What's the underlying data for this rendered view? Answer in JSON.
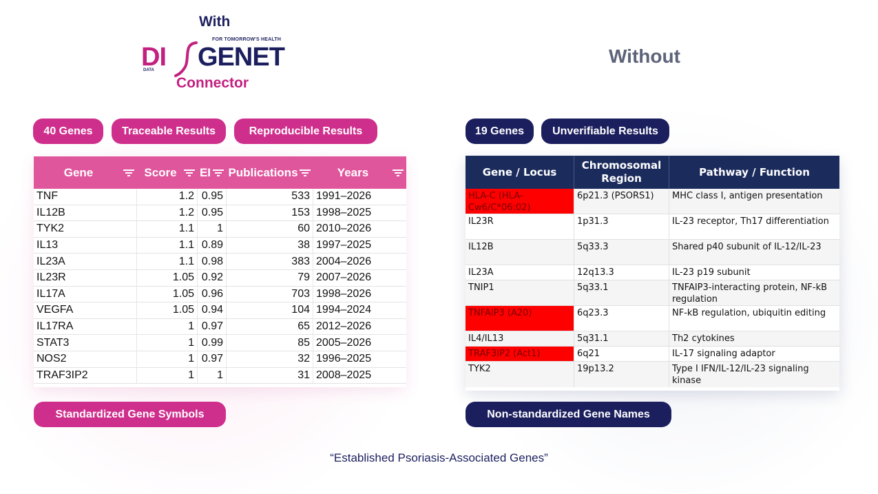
{
  "header": {
    "with_label": "With",
    "logo": {
      "tagline": "FOR TOMORROW'S HEALTH",
      "left": "DI",
      "right": "GENET",
      "sub": "DATA"
    },
    "connector_label": "Connector",
    "without_label": "Without"
  },
  "colors": {
    "pink": "#cf2f8c",
    "navy": "#1b1f5e",
    "table_pink": "#e0569d",
    "table_navy": "#1b2b5c",
    "highlight_red": "#ff0000"
  },
  "left": {
    "pills": [
      "40 Genes",
      "Traceable Results",
      "Reproducible Results"
    ],
    "footer_pill": "Standardized Gene Symbols",
    "table": {
      "columns": [
        "Gene",
        "Score",
        "EI",
        "Publications",
        "Years"
      ],
      "rows": [
        [
          "TNF",
          "1.2",
          "0.95",
          "533",
          "1991–2026"
        ],
        [
          "IL12B",
          "1.2",
          "0.95",
          "153",
          "1998–2025"
        ],
        [
          "TYK2",
          "1.1",
          "1",
          "60",
          "2010–2026"
        ],
        [
          "IL13",
          "1.1",
          "0.89",
          "38",
          "1997–2025"
        ],
        [
          "IL23A",
          "1.1",
          "0.98",
          "383",
          "2004–2026"
        ],
        [
          "IL23R",
          "1.05",
          "0.92",
          "79",
          "2007–2026"
        ],
        [
          "IL17A",
          "1.05",
          "0.96",
          "703",
          "1998–2026"
        ],
        [
          "VEGFA",
          "1.05",
          "0.94",
          "104",
          "1994–2024"
        ],
        [
          "IL17RA",
          "1",
          "0.97",
          "65",
          "2012–2026"
        ],
        [
          "STAT3",
          "1",
          "0.99",
          "85",
          "2005–2026"
        ],
        [
          "NOS2",
          "1",
          "0.97",
          "32",
          "1996–2025"
        ],
        [
          "TRAF3IP2",
          "1",
          "1",
          "31",
          "2008–2025"
        ]
      ]
    }
  },
  "right": {
    "pills": [
      "19 Genes",
      "Unverifiable Results"
    ],
    "footer_pill": "Non-standardized Gene Names",
    "table": {
      "columns": [
        "Gene / Locus",
        "Chromosomal Region",
        "Pathway / Function"
      ],
      "rows": [
        {
          "gene": "HLA-C (HLA-Cw6/C*06:02)",
          "region": "6p21.3 (PSORS1)",
          "function": "MHC class I, antigen presentation",
          "highlight": true
        },
        {
          "gene": "IL23R",
          "region": "1p31.3",
          "function": "IL-23 receptor, Th17 differentiation",
          "highlight": false
        },
        {
          "gene": "IL12B",
          "region": "5q33.3",
          "function": "Shared p40 subunit of IL-12/IL-23",
          "highlight": false
        },
        {
          "gene": "IL23A",
          "region": "12q13.3",
          "function": "IL-23 p19 subunit",
          "highlight": false
        },
        {
          "gene": "TNIP1",
          "region": "5q33.1",
          "function": "TNFAIP3-interacting protein, NF-kB regulation",
          "highlight": false
        },
        {
          "gene": "TNFAIP3 (A20)",
          "region": "6q23.3",
          "function": "NF-kB regulation, ubiquitin editing",
          "highlight": true
        },
        {
          "gene": "IL4/IL13",
          "region": "5q31.1",
          "function": "Th2 cytokines",
          "highlight": false
        },
        {
          "gene": "TRAF3IP2 (Act1)",
          "region": "6q21",
          "function": "IL-17 signaling adaptor",
          "highlight": true
        },
        {
          "gene": "TYK2",
          "region": "19p13.2",
          "function": "Type I IFN/IL-12/IL-23 signaling kinase",
          "highlight": false
        }
      ]
    }
  },
  "caption": "“Established Psoriasis-Associated Genes”"
}
